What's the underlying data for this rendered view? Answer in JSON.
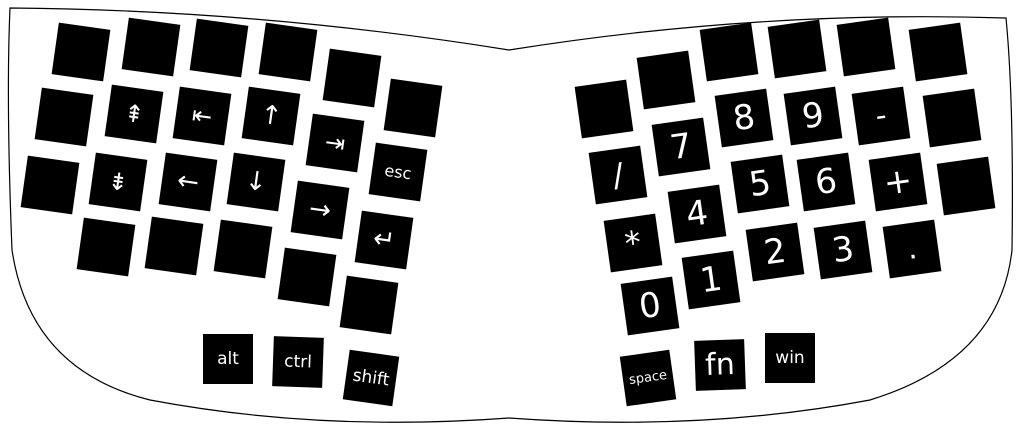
{
  "colors": {
    "key": "#000000",
    "legend": "#ffffff",
    "background": "#ffffff",
    "outline": "#000000"
  },
  "left_half": {
    "blank_keys": 14,
    "legends": {
      "page_up": "⇞",
      "home": "⇤",
      "up": "↑",
      "end": "⇥",
      "esc": "esc",
      "page_down": "⇟",
      "left": "←",
      "down": "↓",
      "right": "→",
      "enter": "↵"
    },
    "thumb": {
      "alt": "alt",
      "ctrl": "ctrl",
      "shift": "shift"
    }
  },
  "right_half": {
    "blank_keys": 9,
    "numpad": {
      "k8": "8",
      "k9": "9",
      "minus": "-",
      "k7": "7",
      "slash": "/",
      "k5": "5",
      "k6": "6",
      "plus": "+",
      "k4": "4",
      "star": "*",
      "k2": "2",
      "k3": "3",
      "dot": ".",
      "k1": "1",
      "k0": "0"
    },
    "thumb": {
      "space": "space",
      "fn": "fn",
      "win": "win"
    }
  }
}
